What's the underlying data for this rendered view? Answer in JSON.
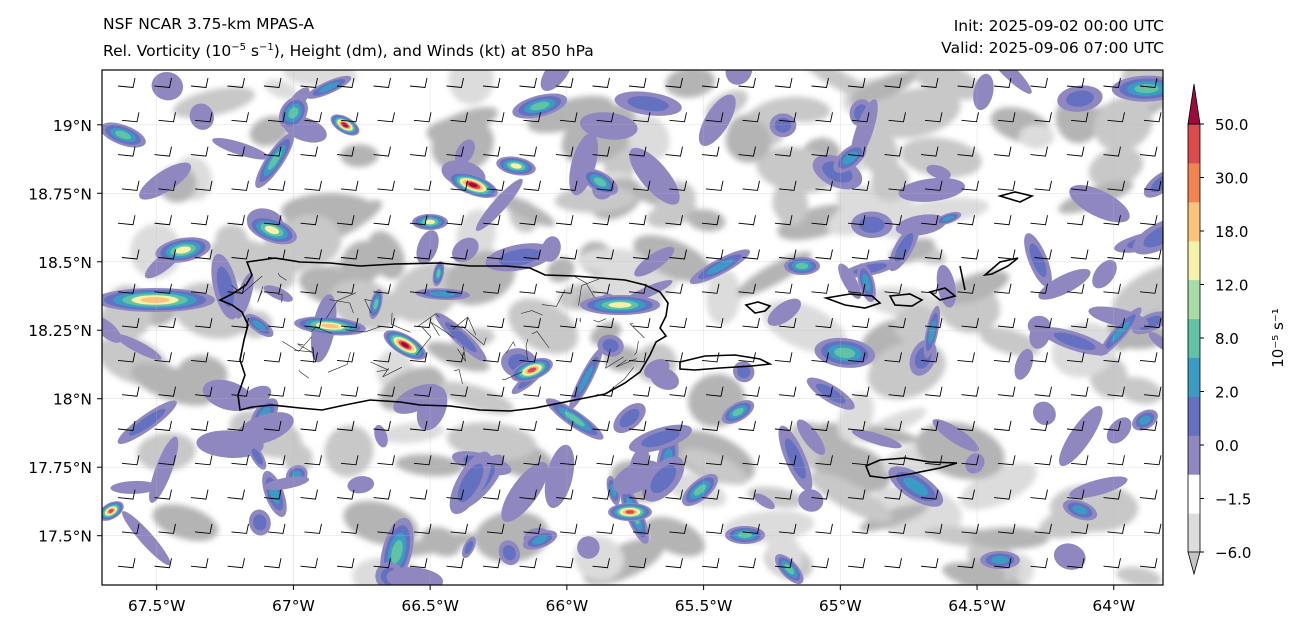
{
  "header": {
    "model": "NSF NCAR 3.75-km MPAS-A",
    "field_prefix": "Rel. Vorticity (10",
    "field_exp1": "−5",
    "field_mid": " s",
    "field_exp2": "−1",
    "field_suffix": "), Height (dm), and Winds (kt) at 850 hPa",
    "init": "Init: 2025-09-02 00:00 UTC",
    "valid": "Valid: 2025-09-06 07:00 UTC"
  },
  "axes": {
    "lon_ticks": [
      {
        "value": -67.5,
        "label": "67.5°W"
      },
      {
        "value": -67.0,
        "label": "67°W"
      },
      {
        "value": -66.5,
        "label": "66.5°W"
      },
      {
        "value": -66.0,
        "label": "66°W"
      },
      {
        "value": -65.5,
        "label": "65.5°W"
      },
      {
        "value": -65.0,
        "label": "65°W"
      },
      {
        "value": -64.5,
        "label": "64.5°W"
      },
      {
        "value": -64.0,
        "label": "64°W"
      }
    ],
    "lat_ticks": [
      {
        "value": 19.0,
        "label": "19°N"
      },
      {
        "value": 18.75,
        "label": "18.75°N"
      },
      {
        "value": 18.5,
        "label": "18.5°N"
      },
      {
        "value": 18.25,
        "label": "18.25°N"
      },
      {
        "value": 18.0,
        "label": "18°N"
      },
      {
        "value": 17.75,
        "label": "17.75°N"
      },
      {
        "value": 17.5,
        "label": "17.5°N"
      }
    ],
    "lon_range": [
      -67.7,
      -63.82
    ],
    "lat_range": [
      17.32,
      19.2
    ]
  },
  "colorbar": {
    "unit_label": "10⁻⁵ s⁻¹",
    "levels": [
      -6.0,
      -1.5,
      0.0,
      2.0,
      8.0,
      12.0,
      18.0,
      30.0,
      50.0
    ],
    "colors": [
      "#c4c4c4",
      "#dcdcdc",
      "#ffffff",
      "#8f87c0",
      "#6470c0",
      "#3a9cc4",
      "#62c2a6",
      "#a8dca6",
      "#f6f3a8",
      "#fbc47a",
      "#f38350",
      "#dc4a4d",
      "#9e0a3e"
    ]
  },
  "vorticity_colors": {
    "gray_dark": "#b4b4b4",
    "gray_mid": "#c8c8c8",
    "gray_light": "#dcdcdc",
    "purple": "#8f87c0",
    "blue": "#6470c0",
    "cyan": "#3a9cc4",
    "teal": "#62c2a6",
    "yellow": "#f6f3a8",
    "orange": "#fbc47a",
    "red": "#dc4a4d",
    "maroon": "#9e0a3e"
  },
  "wind_barbs": {
    "direction": "easterly",
    "speed_kt": 15
  }
}
